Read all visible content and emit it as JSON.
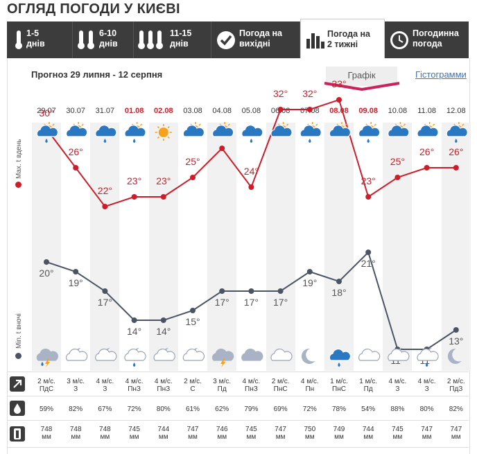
{
  "title": "ОГЛЯД ПОГОДИ У КИЄВІ",
  "tabs": [
    {
      "line1": "1-5",
      "line2": "днів",
      "icon": "thermometer-1-icon"
    },
    {
      "line1": "6-10",
      "line2": "днів",
      "icon": "thermometer-2-icon"
    },
    {
      "line1": "11-15",
      "line2": "днів",
      "icon": "thermometer-3-icon"
    },
    {
      "line1": "Погода на",
      "line2": "вихідні",
      "icon": "checkmark-icon"
    },
    {
      "line1": "Погода на",
      "line2": "2 тижні",
      "icon": "bar-chart-icon"
    },
    {
      "line1": "Погодинна",
      "line2": "погода",
      "icon": "clock-icon"
    }
  ],
  "subtitle": "Прогноз 29 липня - 12 серпня",
  "view_switch": {
    "graph": "Графік",
    "histogram": "Гістограмми"
  },
  "axis_labels": {
    "max": "Max. t вдень",
    "min": "Min. t вночі"
  },
  "colors": {
    "max": "#cc1e2a",
    "min": "#4a5463",
    "weekend": "#cc1e2a",
    "tab_bg": "#3c3c3c"
  },
  "days": [
    {
      "date": "29.07",
      "weekend": false,
      "shade": true,
      "day_icon": "sun-cloud-rain-icon",
      "night_icon": "cloud-thunder-rain-icon",
      "max": "30°",
      "min": "20°",
      "wind": "2 м/с.",
      "dir": "ПдС",
      "hum": "59%",
      "p1": "748",
      "p2": "мм"
    },
    {
      "date": "30.07",
      "weekend": false,
      "shade": false,
      "day_icon": "sun-cloud-icon",
      "night_icon": "moon-cloud-icon",
      "max": "26°",
      "min": "19°",
      "wind": "3 м/с.",
      "dir": "З",
      "hum": "82%",
      "p1": "748",
      "p2": "мм"
    },
    {
      "date": "31.07",
      "weekend": false,
      "shade": true,
      "day_icon": "cloud-rain-icon",
      "night_icon": "moon-cloud-icon",
      "max": "22°",
      "min": "17°",
      "wind": "4 м/с.",
      "dir": "З",
      "hum": "67%",
      "p1": "748",
      "p2": "мм"
    },
    {
      "date": "01.08",
      "weekend": true,
      "shade": false,
      "day_icon": "sun-cloud-rain-icon",
      "night_icon": "moon-cloud-rain-icon",
      "max": "23°",
      "min": "14°",
      "wind": "4 м/с.",
      "dir": "ПнЗ",
      "hum": "72%",
      "p1": "745",
      "p2": "мм"
    },
    {
      "date": "02.08",
      "weekend": true,
      "shade": true,
      "day_icon": "sun-icon",
      "night_icon": "moon-cloud-icon",
      "max": "23°",
      "min": "14°",
      "wind": "4 м/с.",
      "dir": "ПнЗ",
      "hum": "80%",
      "p1": "744",
      "p2": "мм"
    },
    {
      "date": "03.08",
      "weekend": false,
      "shade": false,
      "day_icon": "sun-cloud-icon",
      "night_icon": "moon-cloud-icon",
      "max": "25°",
      "min": "15°",
      "wind": "2 м/с.",
      "dir": "С",
      "hum": "61%",
      "p1": "747",
      "p2": "мм"
    },
    {
      "date": "04.08",
      "weekend": false,
      "shade": true,
      "day_icon": "sun-cloud-icon",
      "night_icon": "cloud-thunder-icon",
      "max": "28°",
      "min": "17°",
      "wind": "3 м/с.",
      "dir": "Пд",
      "hum": "62%",
      "p1": "746",
      "p2": "мм"
    },
    {
      "date": "05.08",
      "weekend": false,
      "shade": false,
      "day_icon": "cloud-rain-icon",
      "night_icon": "overcast-icon",
      "max": "24°",
      "min": "17°",
      "wind": "4 м/с.",
      "dir": "ПнЗ",
      "hum": "79%",
      "p1": "745",
      "p2": "мм"
    },
    {
      "date": "06.08",
      "weekend": false,
      "shade": true,
      "day_icon": "sun-cloud-icon",
      "night_icon": "cloud-icon",
      "max": "32°",
      "min": "17°",
      "wind": "2 м/с.",
      "dir": "ПнС",
      "hum": "69%",
      "p1": "747",
      "p2": "мм"
    },
    {
      "date": "07.08",
      "weekend": false,
      "shade": false,
      "day_icon": "sun-cloud-rain-icon",
      "night_icon": "moon-icon",
      "max": "32°",
      "min": "19°",
      "wind": "4 м/с.",
      "dir": "Пн",
      "hum": "72%",
      "p1": "750",
      "p2": "мм"
    },
    {
      "date": "08.08",
      "weekend": true,
      "shade": true,
      "day_icon": "sun-cloud-icon",
      "night_icon": "cloud-rain-icon",
      "max": "33°",
      "min": "18°",
      "wind": "1 м/с.",
      "dir": "ПнС",
      "hum": "78%",
      "p1": "749",
      "p2": "мм"
    },
    {
      "date": "09.08",
      "weekend": true,
      "shade": false,
      "day_icon": "sun-cloud-rain-icon",
      "night_icon": "cloud-icon",
      "max": "23°",
      "min": "21°",
      "wind": "1 м/с.",
      "dir": "Пд",
      "hum": "54%",
      "p1": "744",
      "p2": "мм"
    },
    {
      "date": "10.08",
      "weekend": false,
      "shade": true,
      "day_icon": "sun-cloud-icon",
      "night_icon": "moon-cloud-icon",
      "max": "25°",
      "min": "11°",
      "wind": "4 м/с.",
      "dir": "З",
      "hum": "88%",
      "p1": "745",
      "p2": "мм"
    },
    {
      "date": "11.08",
      "weekend": false,
      "shade": false,
      "day_icon": "sun-cloud-icon",
      "night_icon": "moon-cloud-rain-icon",
      "max": "26°",
      "min": "11°",
      "wind": "4 м/с.",
      "dir": "З",
      "hum": "80%",
      "p1": "747",
      "p2": "мм"
    },
    {
      "date": "12.08",
      "weekend": false,
      "shade": true,
      "day_icon": "sun-cloud-rain-icon",
      "night_icon": "moon-icon",
      "max": "26°",
      "min": "13°",
      "wind": "2 м/с.",
      "dir": "ПдЗ",
      "hum": "82%",
      "p1": "747",
      "p2": "мм"
    }
  ],
  "row_icons": [
    "wind-direction-icon",
    "humidity-drop-icon",
    "barometer-icon"
  ]
}
